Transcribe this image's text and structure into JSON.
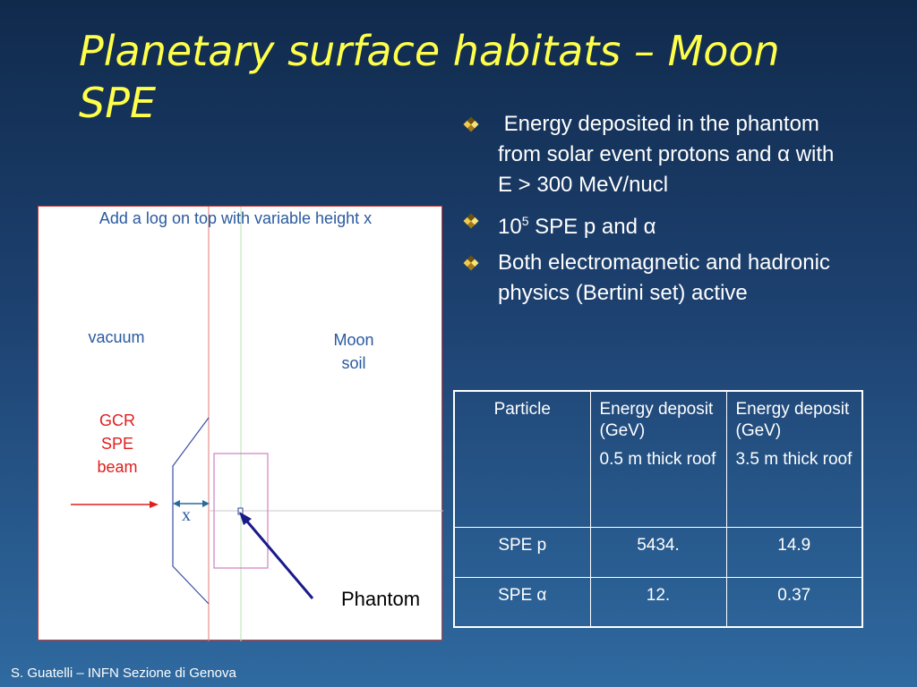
{
  "title": "Planetary surface habitats – Moon SPE",
  "bullets": [
    {
      "text": " Energy deposited in the phantom from solar event protons and α with E > 300 MeV/nucl"
    },
    {
      "base": "10",
      "sup": "5",
      "rest": " SPE p and α"
    },
    {
      "text": "Both electromagnetic and hadronic physics (Bertini set) active"
    }
  ],
  "diagram": {
    "caption": "Add a log on top with variable height x",
    "vacuum_label": "vacuum",
    "moon_label_line1": "Moon",
    "moon_label_line2": "soil",
    "beam_line1": "GCR",
    "beam_line2": "SPE",
    "beam_line3": "beam",
    "x_label": "x",
    "phantom_label": "Phantom"
  },
  "table": {
    "header": {
      "col1": "Particle",
      "col2_line1": "Energy deposit (GeV)",
      "col2_line2": "0.5 m thick roof",
      "col3_line1": "Energy deposit (GeV)",
      "col3_line2": "3.5 m thick roof"
    },
    "rows": [
      {
        "particle": "SPE p",
        "thin": "5434.",
        "thick": "14.9"
      },
      {
        "particle": "SPE α",
        "thin": "12.",
        "thick": "0.37"
      }
    ]
  },
  "footer": "S. Guatelli – INFN Sezione di Genova"
}
